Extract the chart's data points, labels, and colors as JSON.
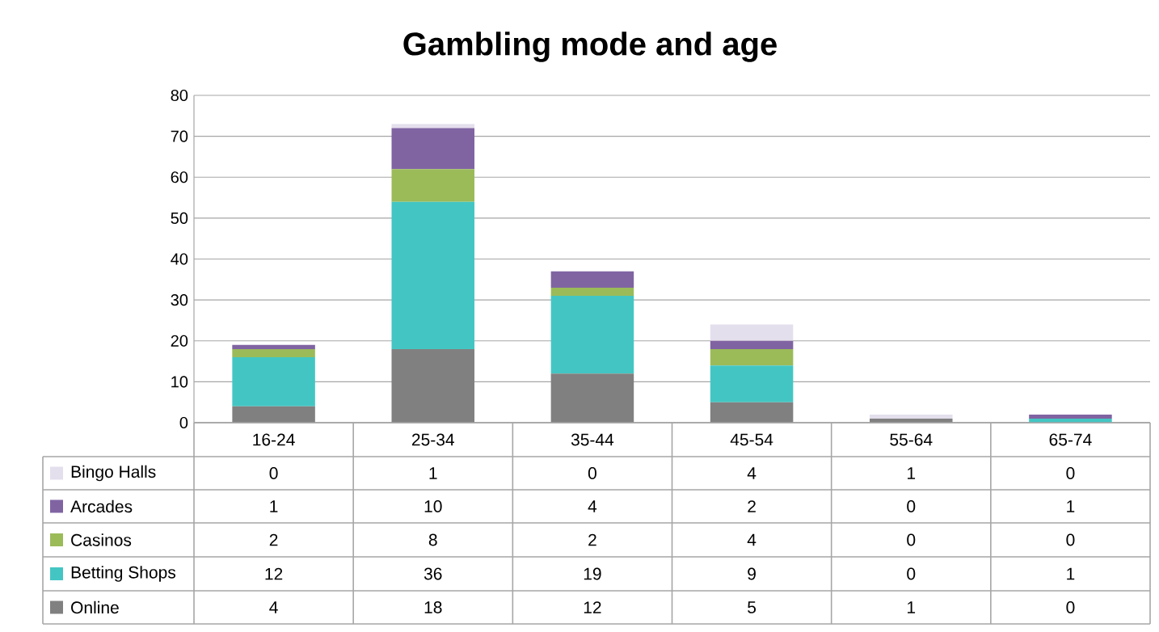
{
  "chart_data": {
    "type": "bar",
    "title": "Gambling mode and age",
    "stacked": true,
    "categories": [
      "16-24",
      "25-34",
      "35-44",
      "45-54",
      "55-64",
      "65-74"
    ],
    "series": [
      {
        "name": "Online",
        "color": "#808080",
        "values": [
          4,
          18,
          12,
          5,
          1,
          0
        ]
      },
      {
        "name": "Betting Shops",
        "color": "#43c6c3",
        "values": [
          12,
          36,
          19,
          9,
          0,
          1
        ]
      },
      {
        "name": "Casinos",
        "color": "#9bbb59",
        "values": [
          2,
          8,
          2,
          4,
          0,
          0
        ]
      },
      {
        "name": "Arcades",
        "color": "#8064a2",
        "values": [
          1,
          10,
          4,
          2,
          0,
          1
        ]
      },
      {
        "name": "Bingo Halls",
        "color": "#e4dfec",
        "values": [
          0,
          1,
          0,
          4,
          1,
          0
        ]
      }
    ],
    "ylim": [
      0,
      80
    ],
    "yticks": [
      0,
      10,
      20,
      30,
      40,
      50,
      60,
      70,
      80
    ],
    "grid": "y",
    "legend": "bottom",
    "data_labels": true
  }
}
